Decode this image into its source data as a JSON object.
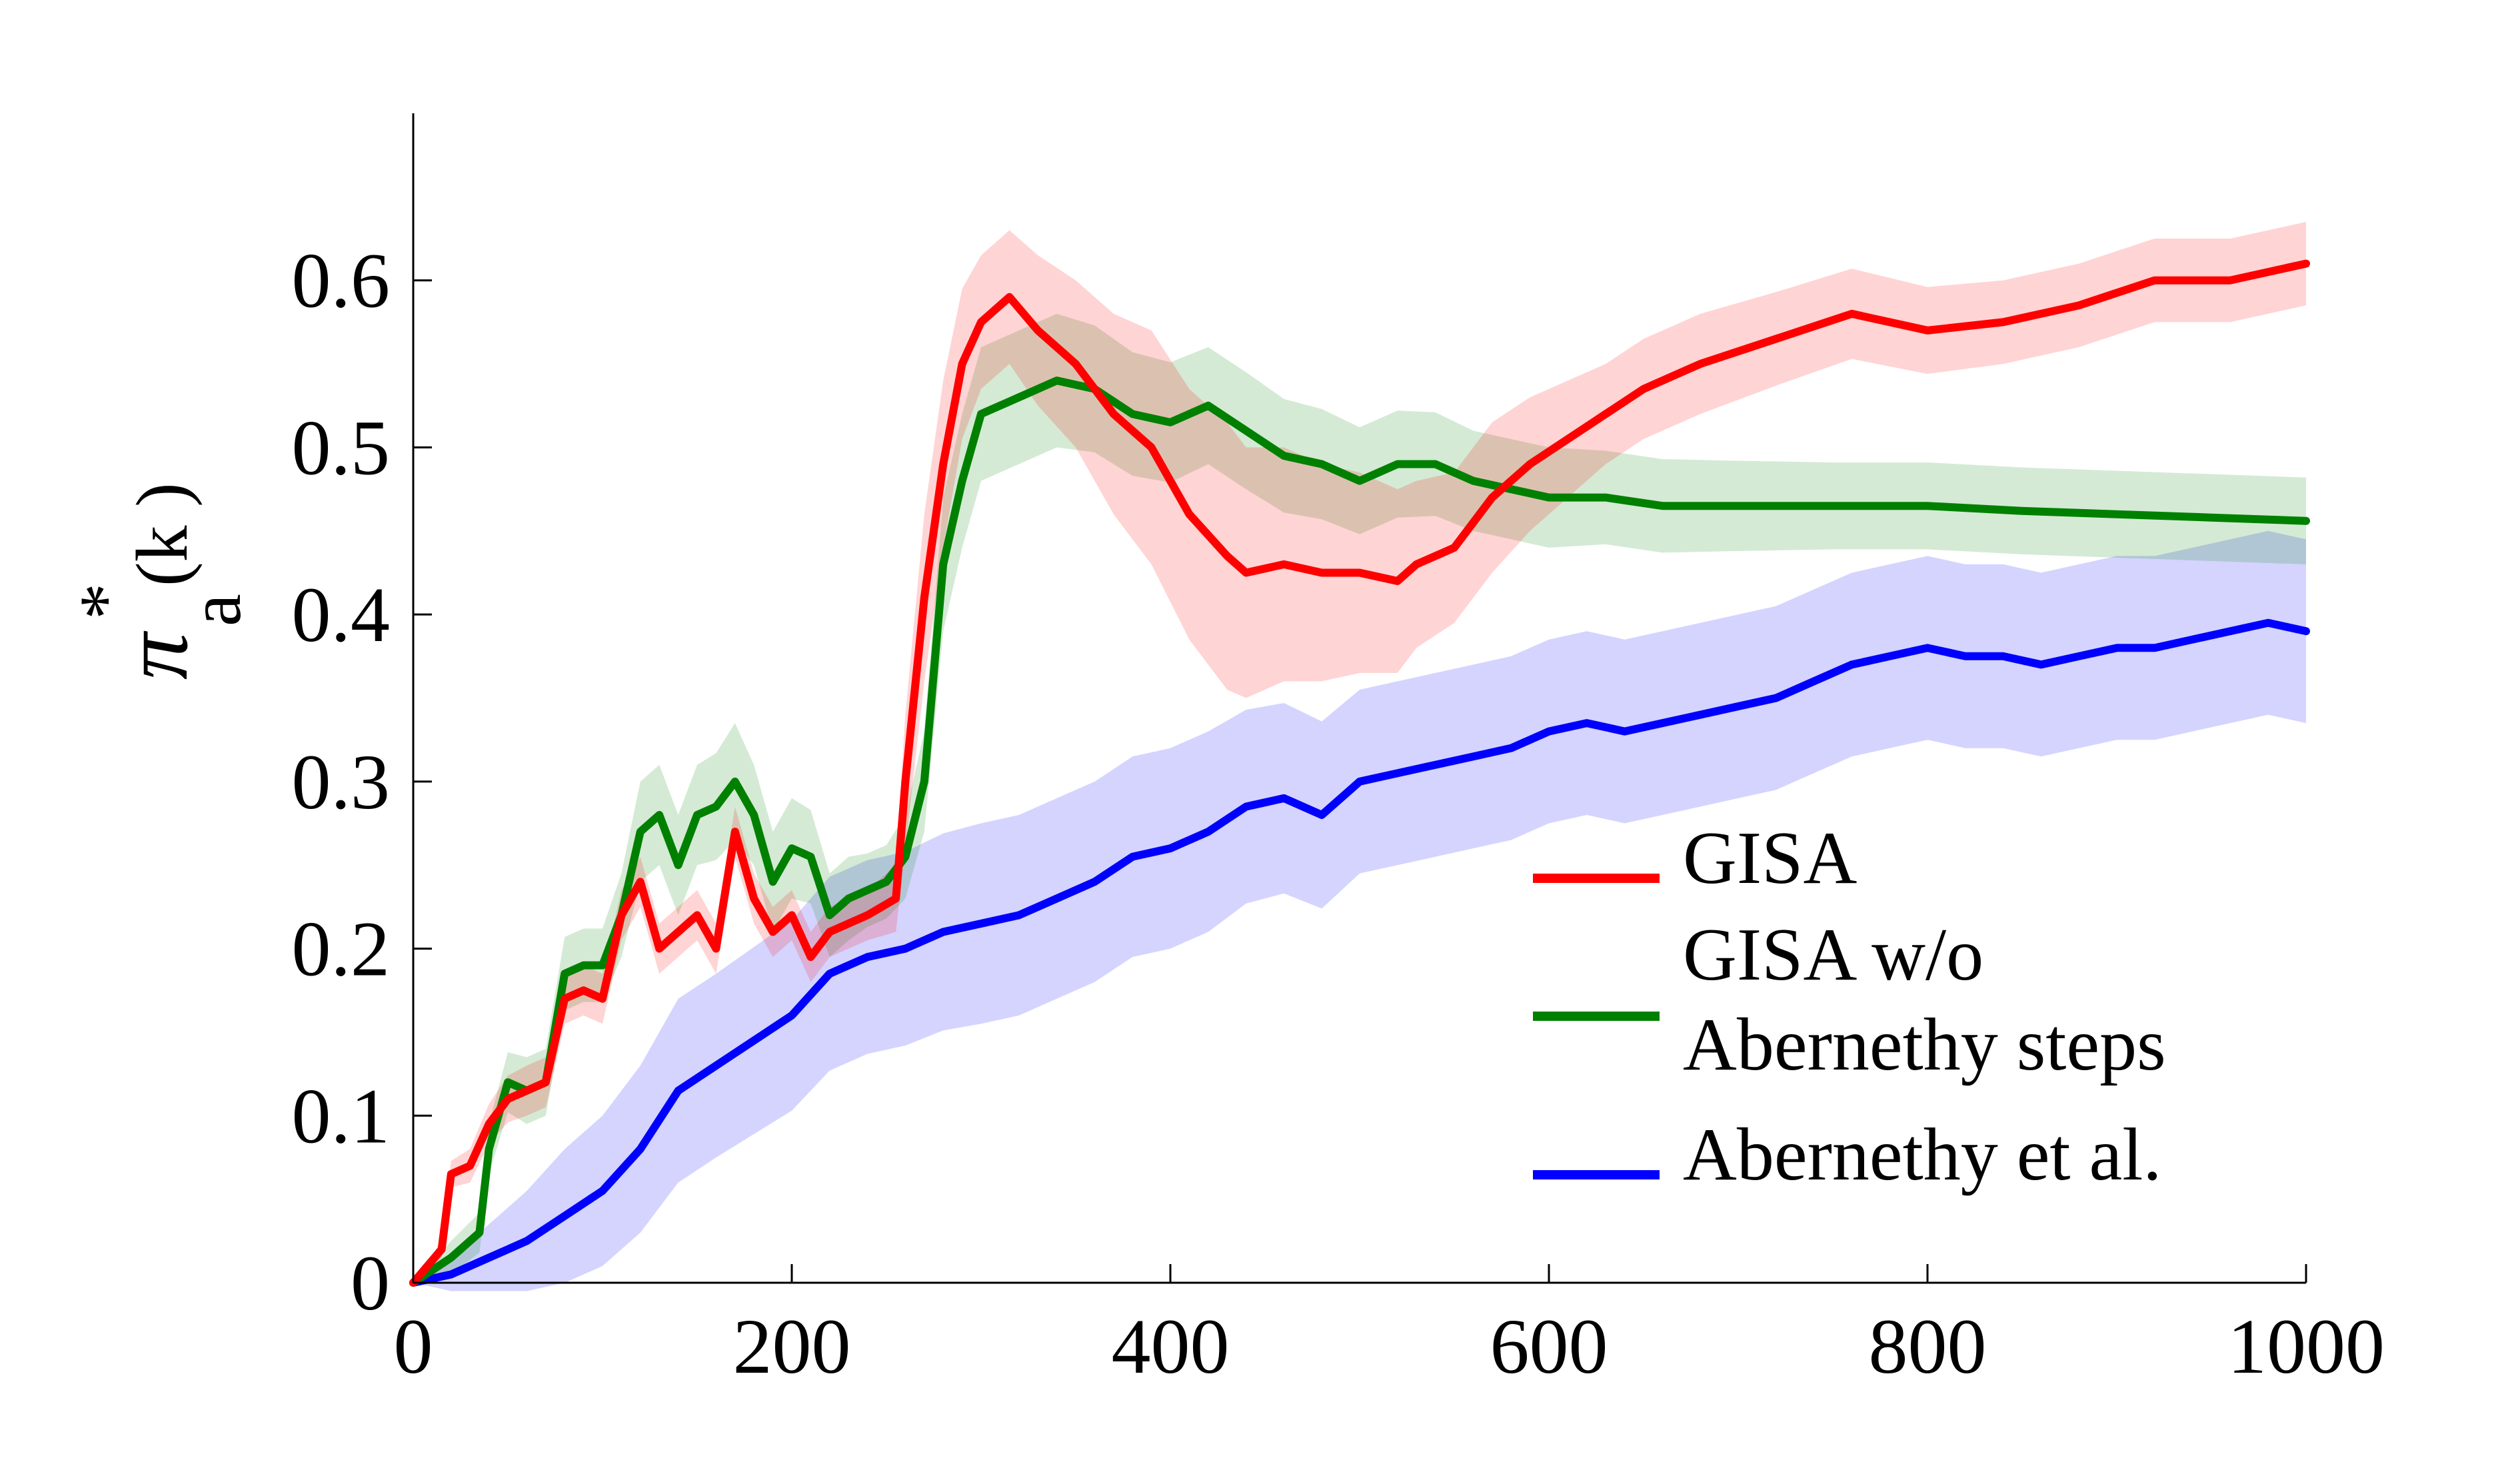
{
  "chart_data": {
    "type": "line",
    "title": "",
    "xlabel": "",
    "ylabel": {
      "base": "π",
      "superscript": "*",
      "subscript": "a",
      "exponent": "(k )"
    },
    "xlim": [
      0,
      1000
    ],
    "ylim": [
      0,
      0.7
    ],
    "xticks": [
      0,
      200,
      400,
      600,
      800,
      1000
    ],
    "xtick_labels": [
      "0",
      "200",
      "400",
      "600",
      "800",
      "1000"
    ],
    "yticks": [
      0,
      0.1,
      0.2,
      0.3,
      0.4,
      0.5,
      0.6
    ],
    "ytick_labels": [
      "0",
      "0.1",
      "0.2",
      "0.3",
      "0.4",
      "0.5",
      "0.6"
    ],
    "grid": false,
    "legend_position": "bottom-right",
    "shaded_bands": true,
    "series": [
      {
        "name": "GISA",
        "color": "#ff0000",
        "x": [
          0,
          15,
          20,
          30,
          40,
          50,
          60,
          70,
          80,
          90,
          100,
          110,
          120,
          130,
          140,
          150,
          160,
          170,
          180,
          190,
          200,
          210,
          220,
          240,
          255,
          260,
          270,
          280,
          290,
          300,
          315,
          330,
          350,
          370,
          390,
          410,
          430,
          440,
          460,
          480,
          500,
          520,
          530,
          550,
          570,
          590,
          610,
          630,
          650,
          680,
          720,
          760,
          800,
          840,
          880,
          920,
          960,
          1000
        ],
        "y": [
          0.0,
          0.02,
          0.065,
          0.07,
          0.095,
          0.11,
          0.115,
          0.12,
          0.17,
          0.175,
          0.17,
          0.22,
          0.24,
          0.2,
          0.21,
          0.22,
          0.2,
          0.27,
          0.23,
          0.21,
          0.22,
          0.195,
          0.21,
          0.22,
          0.23,
          0.3,
          0.41,
          0.49,
          0.55,
          0.575,
          0.59,
          0.57,
          0.55,
          0.52,
          0.5,
          0.46,
          0.435,
          0.425,
          0.43,
          0.425,
          0.425,
          0.42,
          0.43,
          0.44,
          0.47,
          0.49,
          0.505,
          0.52,
          0.535,
          0.55,
          0.565,
          0.58,
          0.57,
          0.575,
          0.585,
          0.6,
          0.6,
          0.61
        ],
        "band_halfwidth": [
          0.0,
          0.005,
          0.008,
          0.01,
          0.012,
          0.014,
          0.015,
          0.015,
          0.015,
          0.015,
          0.015,
          0.015,
          0.015,
          0.015,
          0.015,
          0.015,
          0.015,
          0.015,
          0.015,
          0.015,
          0.015,
          0.015,
          0.015,
          0.015,
          0.02,
          0.04,
          0.05,
          0.05,
          0.045,
          0.04,
          0.04,
          0.045,
          0.05,
          0.06,
          0.07,
          0.075,
          0.08,
          0.075,
          0.07,
          0.065,
          0.06,
          0.055,
          0.05,
          0.045,
          0.045,
          0.04,
          0.035,
          0.03,
          0.03,
          0.03,
          0.028,
          0.027,
          0.026,
          0.025,
          0.025,
          0.025,
          0.025,
          0.025
        ]
      },
      {
        "name": "GISA w/o Abernethy steps",
        "color": "#008000",
        "x": [
          0,
          20,
          35,
          40,
          50,
          60,
          70,
          80,
          90,
          100,
          110,
          120,
          130,
          140,
          150,
          160,
          170,
          180,
          190,
          200,
          210,
          220,
          230,
          240,
          250,
          260,
          270,
          280,
          290,
          300,
          320,
          340,
          360,
          380,
          400,
          420,
          440,
          460,
          480,
          500,
          520,
          540,
          560,
          580,
          600,
          630,
          660,
          700,
          750,
          800,
          850,
          900,
          950,
          1000
        ],
        "y": [
          0.0,
          0.015,
          0.03,
          0.08,
          0.12,
          0.115,
          0.12,
          0.185,
          0.19,
          0.19,
          0.22,
          0.27,
          0.28,
          0.25,
          0.28,
          0.285,
          0.3,
          0.28,
          0.24,
          0.26,
          0.255,
          0.22,
          0.23,
          0.235,
          0.24,
          0.255,
          0.3,
          0.43,
          0.48,
          0.52,
          0.53,
          0.54,
          0.535,
          0.52,
          0.515,
          0.525,
          0.51,
          0.495,
          0.49,
          0.48,
          0.49,
          0.49,
          0.48,
          0.475,
          0.47,
          0.47,
          0.465,
          0.465,
          0.465,
          0.465,
          0.462,
          0.46,
          0.458,
          0.456
        ],
        "band_halfwidth": [
          0.0,
          0.01,
          0.012,
          0.015,
          0.018,
          0.02,
          0.02,
          0.022,
          0.022,
          0.022,
          0.025,
          0.03,
          0.03,
          0.03,
          0.03,
          0.032,
          0.035,
          0.03,
          0.03,
          0.03,
          0.028,
          0.025,
          0.025,
          0.022,
          0.022,
          0.025,
          0.03,
          0.04,
          0.04,
          0.04,
          0.04,
          0.04,
          0.038,
          0.037,
          0.036,
          0.035,
          0.035,
          0.034,
          0.033,
          0.032,
          0.032,
          0.031,
          0.03,
          0.03,
          0.03,
          0.028,
          0.028,
          0.027,
          0.026,
          0.026,
          0.026,
          0.026,
          0.026,
          0.026
        ]
      },
      {
        "name": "Abernethy et al.",
        "color": "#0000ff",
        "x": [
          0,
          20,
          40,
          60,
          80,
          100,
          120,
          140,
          160,
          180,
          200,
          220,
          240,
          260,
          280,
          300,
          320,
          340,
          360,
          380,
          400,
          420,
          440,
          460,
          480,
          500,
          520,
          540,
          560,
          580,
          600,
          620,
          640,
          660,
          680,
          700,
          720,
          740,
          760,
          780,
          800,
          820,
          840,
          860,
          880,
          900,
          920,
          940,
          960,
          980,
          1000
        ],
        "y": [
          0.0,
          0.005,
          0.015,
          0.025,
          0.04,
          0.055,
          0.08,
          0.115,
          0.13,
          0.145,
          0.16,
          0.185,
          0.195,
          0.2,
          0.21,
          0.215,
          0.22,
          0.23,
          0.24,
          0.255,
          0.26,
          0.27,
          0.285,
          0.29,
          0.28,
          0.3,
          0.305,
          0.31,
          0.315,
          0.32,
          0.33,
          0.335,
          0.33,
          0.335,
          0.34,
          0.345,
          0.35,
          0.36,
          0.37,
          0.375,
          0.38,
          0.375,
          0.375,
          0.37,
          0.375,
          0.38,
          0.38,
          0.385,
          0.39,
          0.395,
          0.39
        ],
        "band_halfwidth": [
          0.0,
          0.01,
          0.02,
          0.03,
          0.04,
          0.045,
          0.05,
          0.055,
          0.055,
          0.056,
          0.057,
          0.058,
          0.058,
          0.058,
          0.059,
          0.06,
          0.06,
          0.06,
          0.06,
          0.06,
          0.06,
          0.06,
          0.058,
          0.057,
          0.056,
          0.055,
          0.055,
          0.055,
          0.055,
          0.055,
          0.055,
          0.055,
          0.055,
          0.055,
          0.055,
          0.055,
          0.055,
          0.055,
          0.055,
          0.055,
          0.055,
          0.055,
          0.055,
          0.055,
          0.055,
          0.055,
          0.055,
          0.055,
          0.055,
          0.055,
          0.055
        ]
      }
    ],
    "legend": [
      {
        "lines": [
          "GISA"
        ],
        "color": "#ff0000"
      },
      {
        "lines": [
          "GISA w/o",
          "Abernethy steps"
        ],
        "color": "#008000"
      },
      {
        "lines": [
          "Abernethy et al."
        ],
        "color": "#0000ff"
      }
    ]
  }
}
